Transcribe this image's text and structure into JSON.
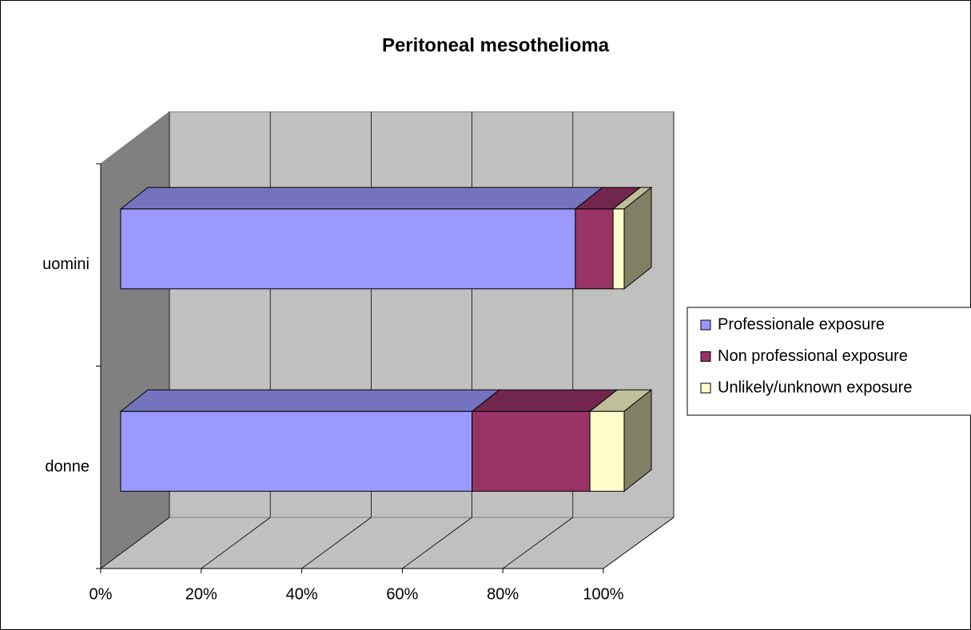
{
  "chart_data": {
    "type": "bar3d-stacked-horizontal",
    "title": "Peritoneal  mesothelioma",
    "categories": [
      "donne",
      "uomini"
    ],
    "series": [
      {
        "name": "Professionale exposure",
        "color": "#9999ff",
        "values": [
          69.8,
          90.3
        ]
      },
      {
        "name": "Non professional exposure",
        "color": "#993366",
        "values": [
          23.4,
          7.5
        ]
      },
      {
        "name": "Unlikely/unknown exposure",
        "color": "#ffffcc",
        "values": [
          6.8,
          2.2
        ]
      }
    ],
    "xlim": [
      0,
      100
    ],
    "xticks": [
      {
        "value": 0,
        "label": "0%"
      },
      {
        "value": 20,
        "label": "20%"
      },
      {
        "value": 40,
        "label": "40%"
      },
      {
        "value": 60,
        "label": "60%"
      },
      {
        "value": 80,
        "label": "80%"
      },
      {
        "value": 100,
        "label": "100%"
      }
    ],
    "grid": true,
    "legend": "right"
  }
}
